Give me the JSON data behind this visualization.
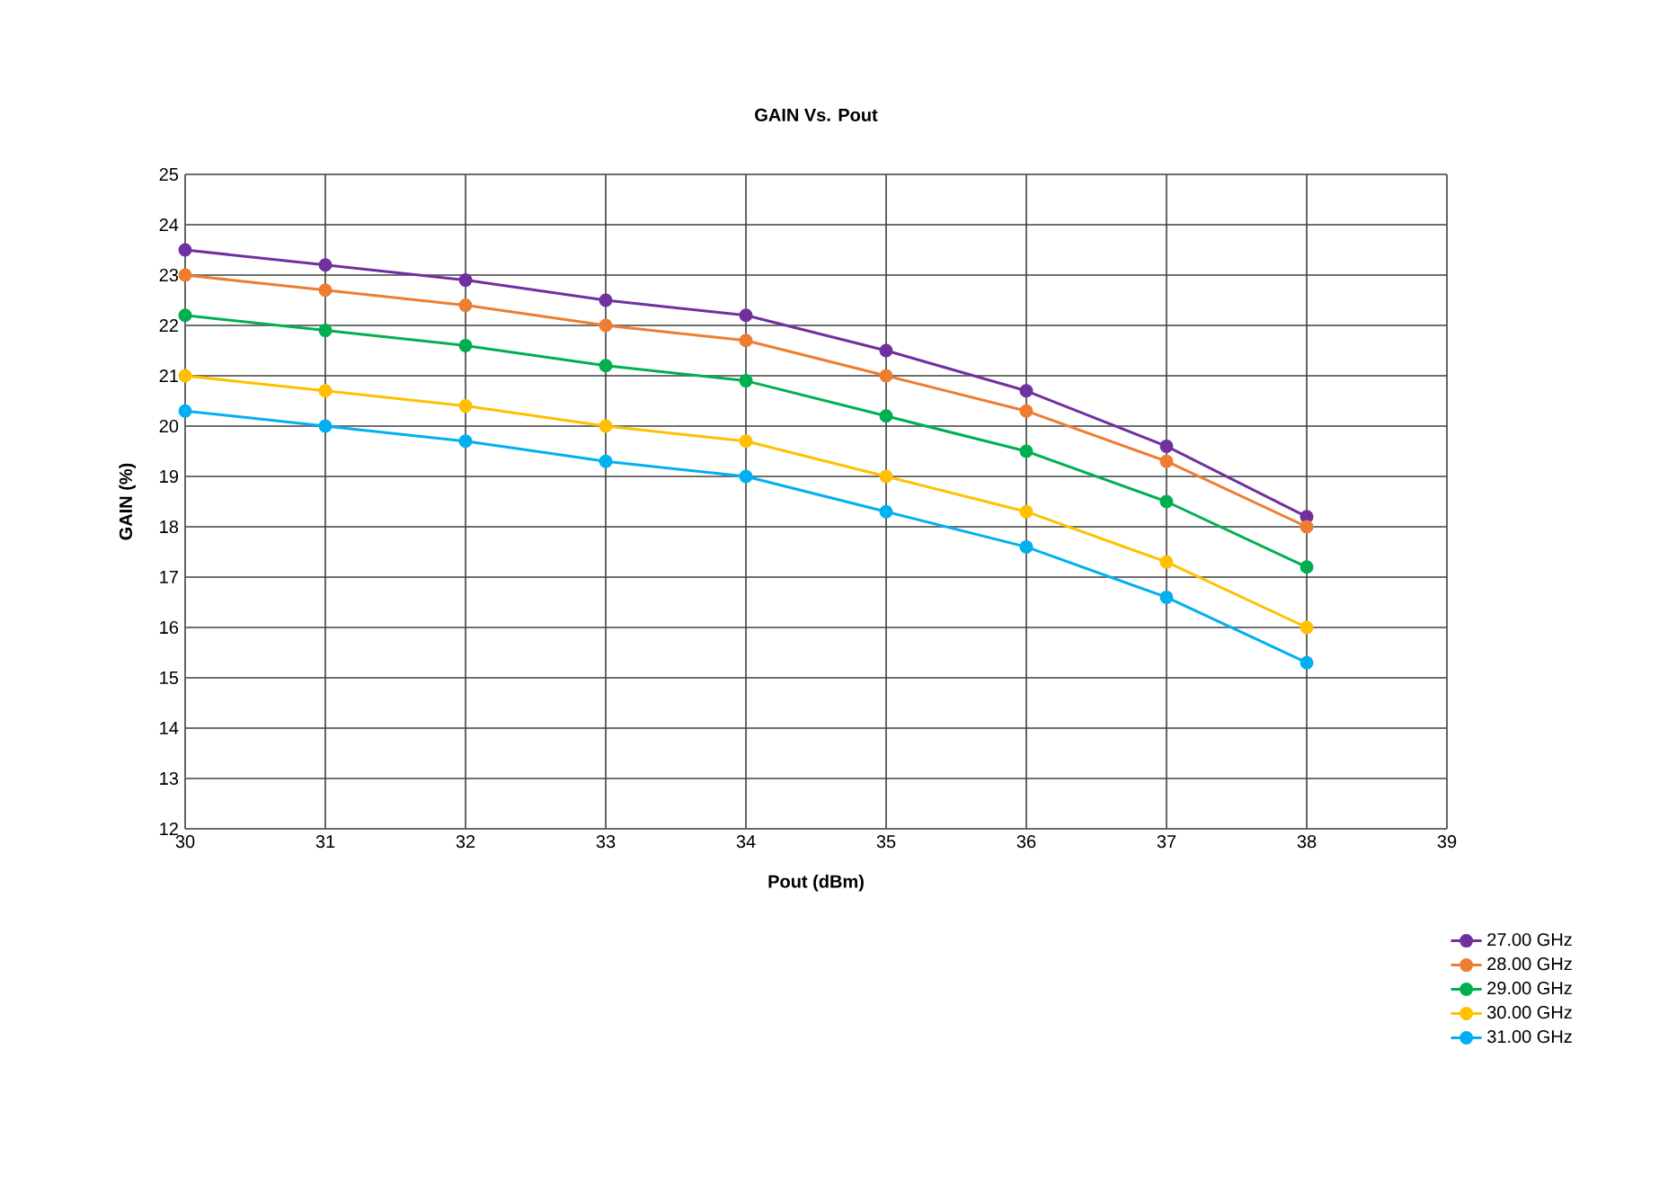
{
  "chart_data": {
    "type": "line",
    "title": "GAIN Vs. Pout",
    "xlabel": "Pout (dBm)",
    "ylabel": "GAIN (%)",
    "x": [
      30,
      31,
      32,
      33,
      34,
      35,
      36,
      37,
      38
    ],
    "series": [
      {
        "name": "27.00 GHz",
        "color": "#7030a0",
        "values": [
          23.5,
          23.2,
          22.9,
          22.5,
          22.2,
          21.5,
          20.7,
          19.6,
          18.2
        ]
      },
      {
        "name": "28.00 GHz",
        "color": "#ed7d31",
        "values": [
          23.0,
          22.7,
          22.4,
          22.0,
          21.7,
          21.0,
          20.3,
          19.3,
          18.0
        ]
      },
      {
        "name": "29.00 GHz",
        "color": "#00b050",
        "values": [
          22.2,
          21.9,
          21.6,
          21.2,
          20.9,
          20.2,
          19.5,
          18.5,
          17.2
        ]
      },
      {
        "name": "30.00 GHz",
        "color": "#ffc000",
        "values": [
          21.0,
          20.7,
          20.4,
          20.0,
          19.7,
          19.0,
          18.3,
          17.3,
          16.0
        ]
      },
      {
        "name": "31.00 GHz",
        "color": "#00b0f0",
        "values": [
          20.3,
          20.0,
          19.7,
          19.3,
          19.0,
          18.3,
          17.6,
          16.6,
          15.3
        ]
      }
    ],
    "xlim": [
      30,
      39
    ],
    "xticks": [
      30,
      31,
      32,
      33,
      34,
      35,
      36,
      37,
      38,
      39
    ],
    "ylim": [
      12,
      25
    ],
    "yticks": [
      12,
      13,
      14,
      15,
      16,
      17,
      18,
      19,
      20,
      21,
      22,
      23,
      24,
      25
    ],
    "grid": true,
    "legend": "bottom right",
    "marker": "circle",
    "line_style": "solid"
  }
}
